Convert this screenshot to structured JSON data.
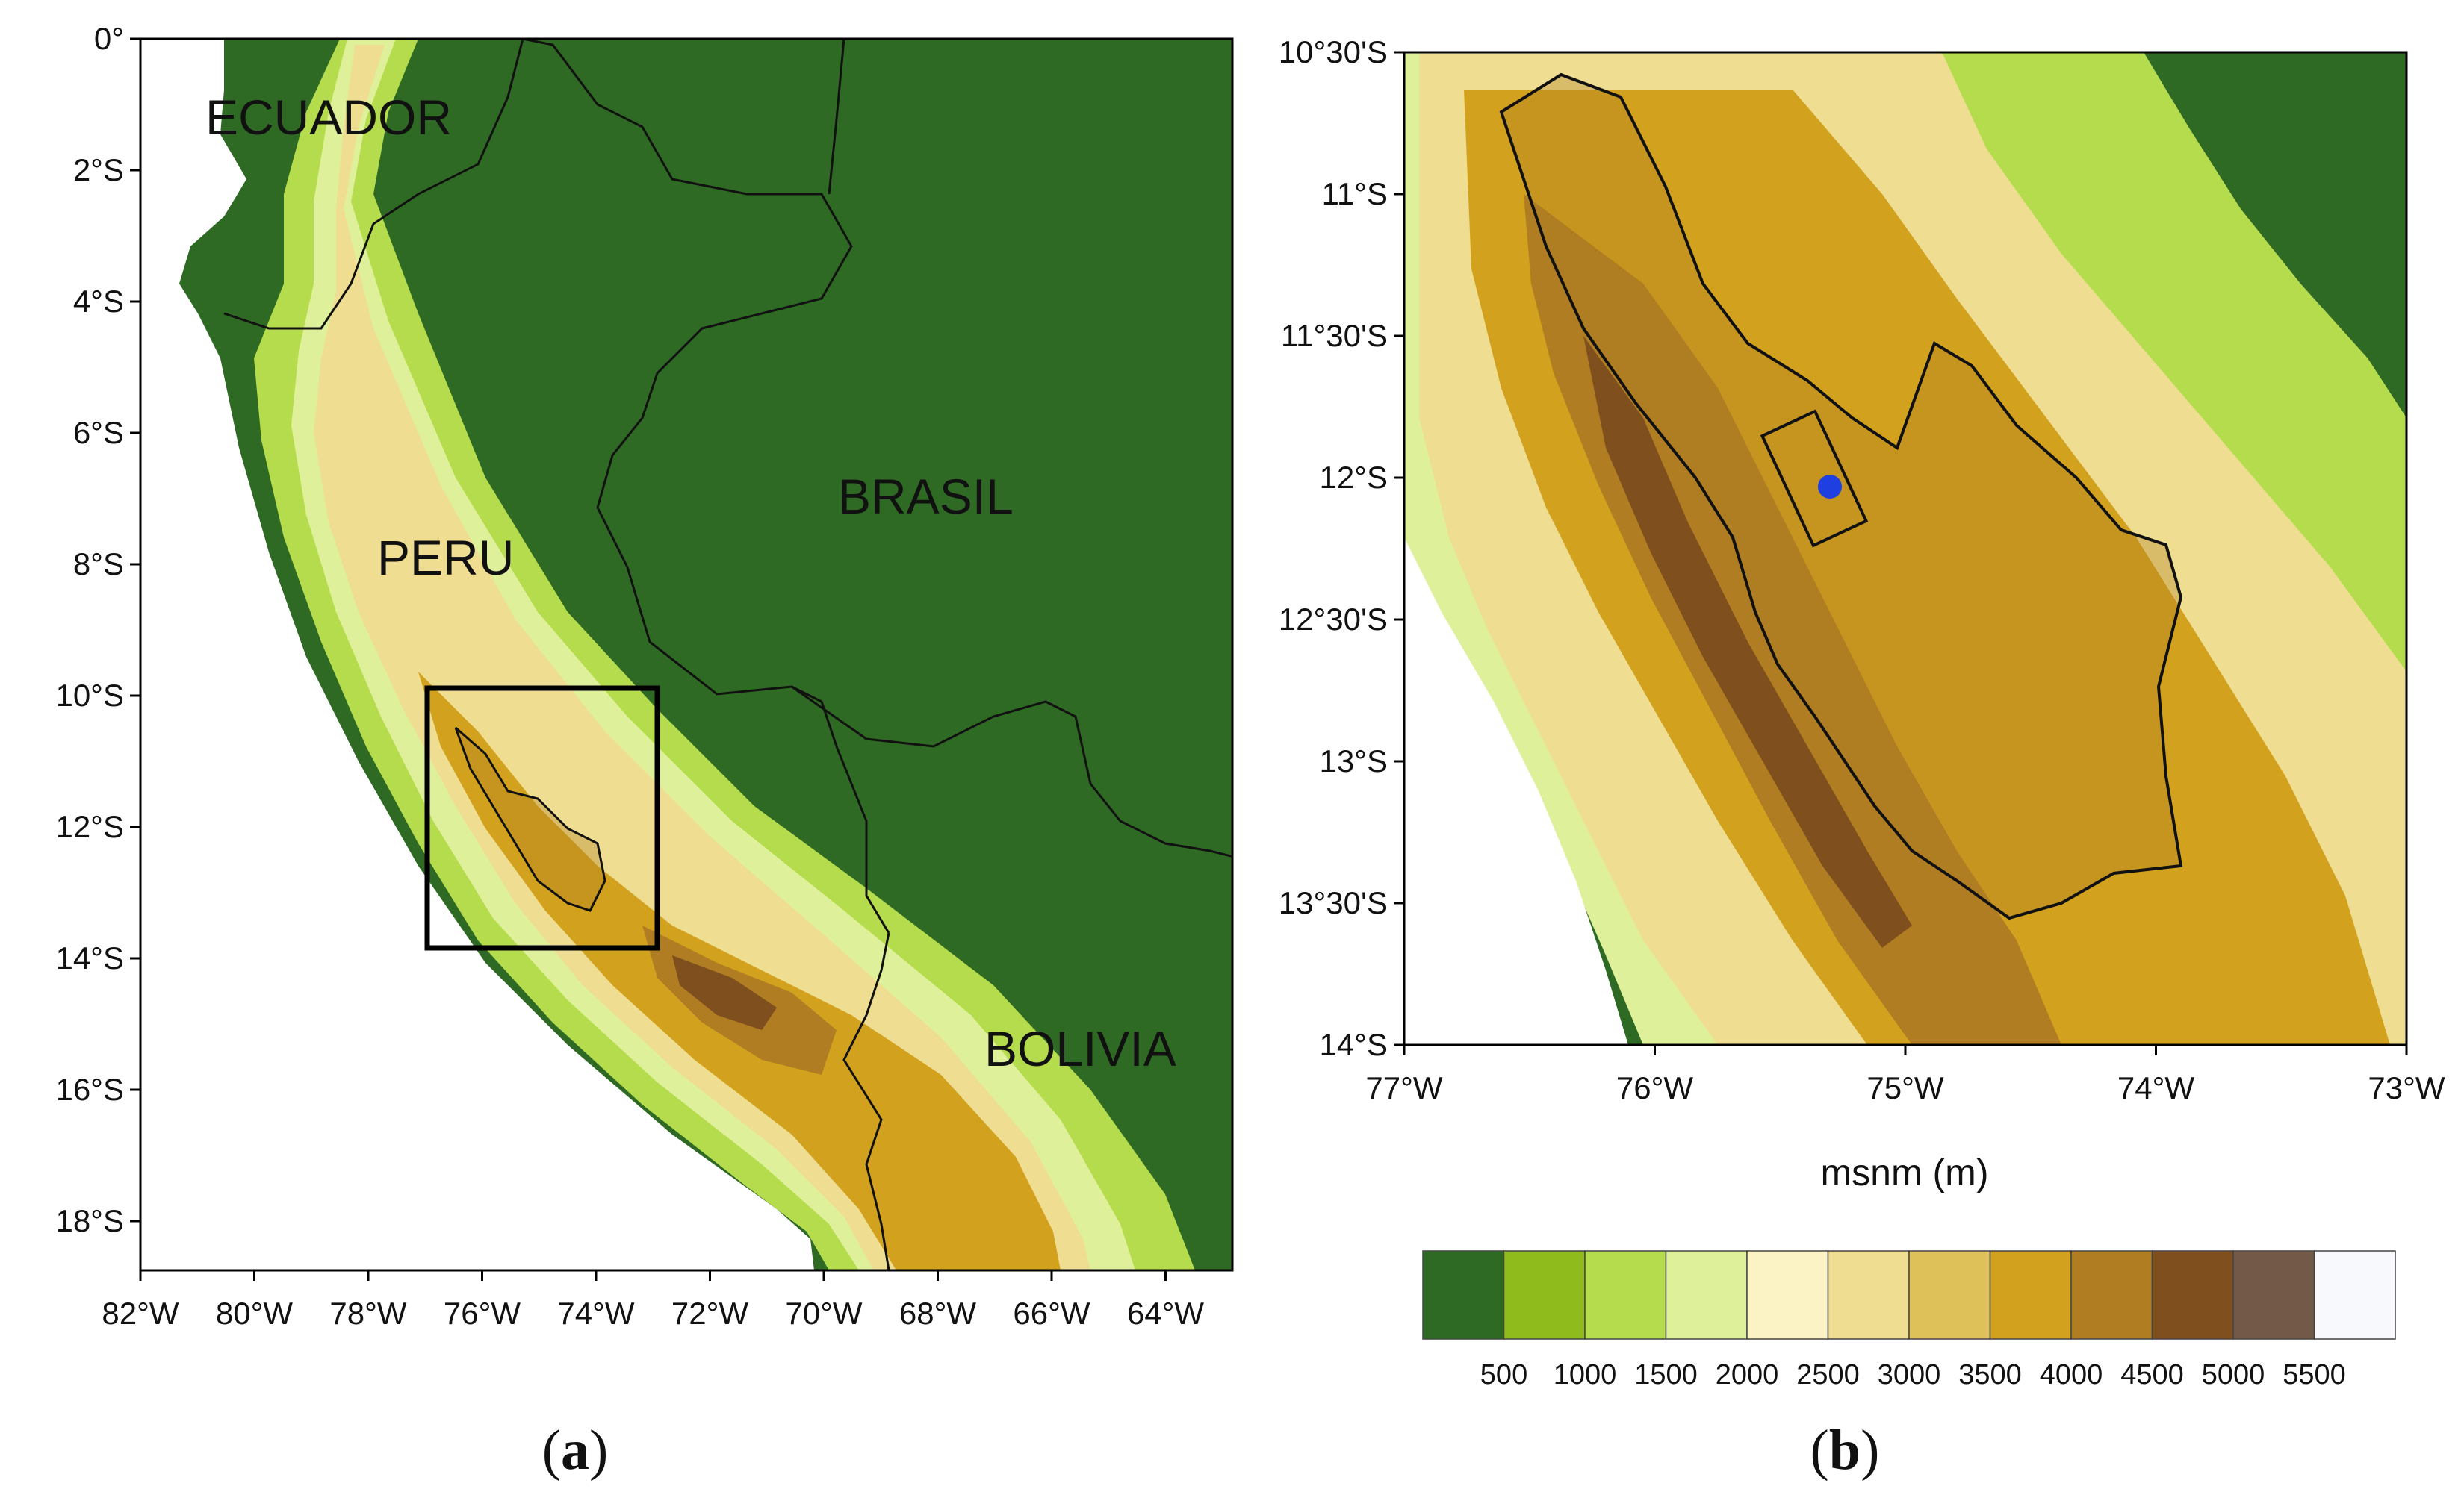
{
  "colors": {
    "land_low": "#2f6a24",
    "ocean": "#ffffff",
    "frame": "#000000",
    "point": "#1f3fe0",
    "scale": [
      "#2f6a24",
      "#8fbb1c",
      "#b5dc4c",
      "#dff09a",
      "#fbf2c6",
      "#efdd91",
      "#dfc159",
      "#d2a21e",
      "#b07d22",
      "#7f4f1d",
      "#735a48",
      "#f8f9fd"
    ]
  },
  "map_a": {
    "lat_labels": [
      "0°",
      "2°S",
      "4°S",
      "6°S",
      "8°S",
      "10°S",
      "12°S",
      "14°S",
      "16°S",
      "18°S"
    ],
    "lon_labels": [
      "82°W",
      "80°W",
      "78°W",
      "76°W",
      "74°W",
      "72°W",
      "70°W",
      "68°W",
      "66°W",
      "64°W"
    ],
    "countries": {
      "ecuador": "ECUADOR",
      "peru": "PERU",
      "brasil": "BRASIL",
      "bolivia": "BOLIVIA"
    },
    "caption_letter": "a",
    "caption_open": "(",
    "caption_close": ")"
  },
  "map_b": {
    "lat_labels": [
      "10°30'S",
      "11°S",
      "11°30'S",
      "12°S",
      "12°30'S",
      "13°S",
      "13°30'S",
      "14°S"
    ],
    "lon_labels": [
      "77°W",
      "76°W",
      "75°W",
      "74°W",
      "73°W"
    ],
    "caption_letter": "b",
    "caption_open": "(",
    "caption_close": ")"
  },
  "colorbar": {
    "title": "msnm (m)",
    "labels": [
      "500",
      "1000",
      "1500",
      "2000",
      "2500",
      "3000",
      "3500",
      "4000",
      "4500",
      "5000",
      "5500"
    ]
  }
}
